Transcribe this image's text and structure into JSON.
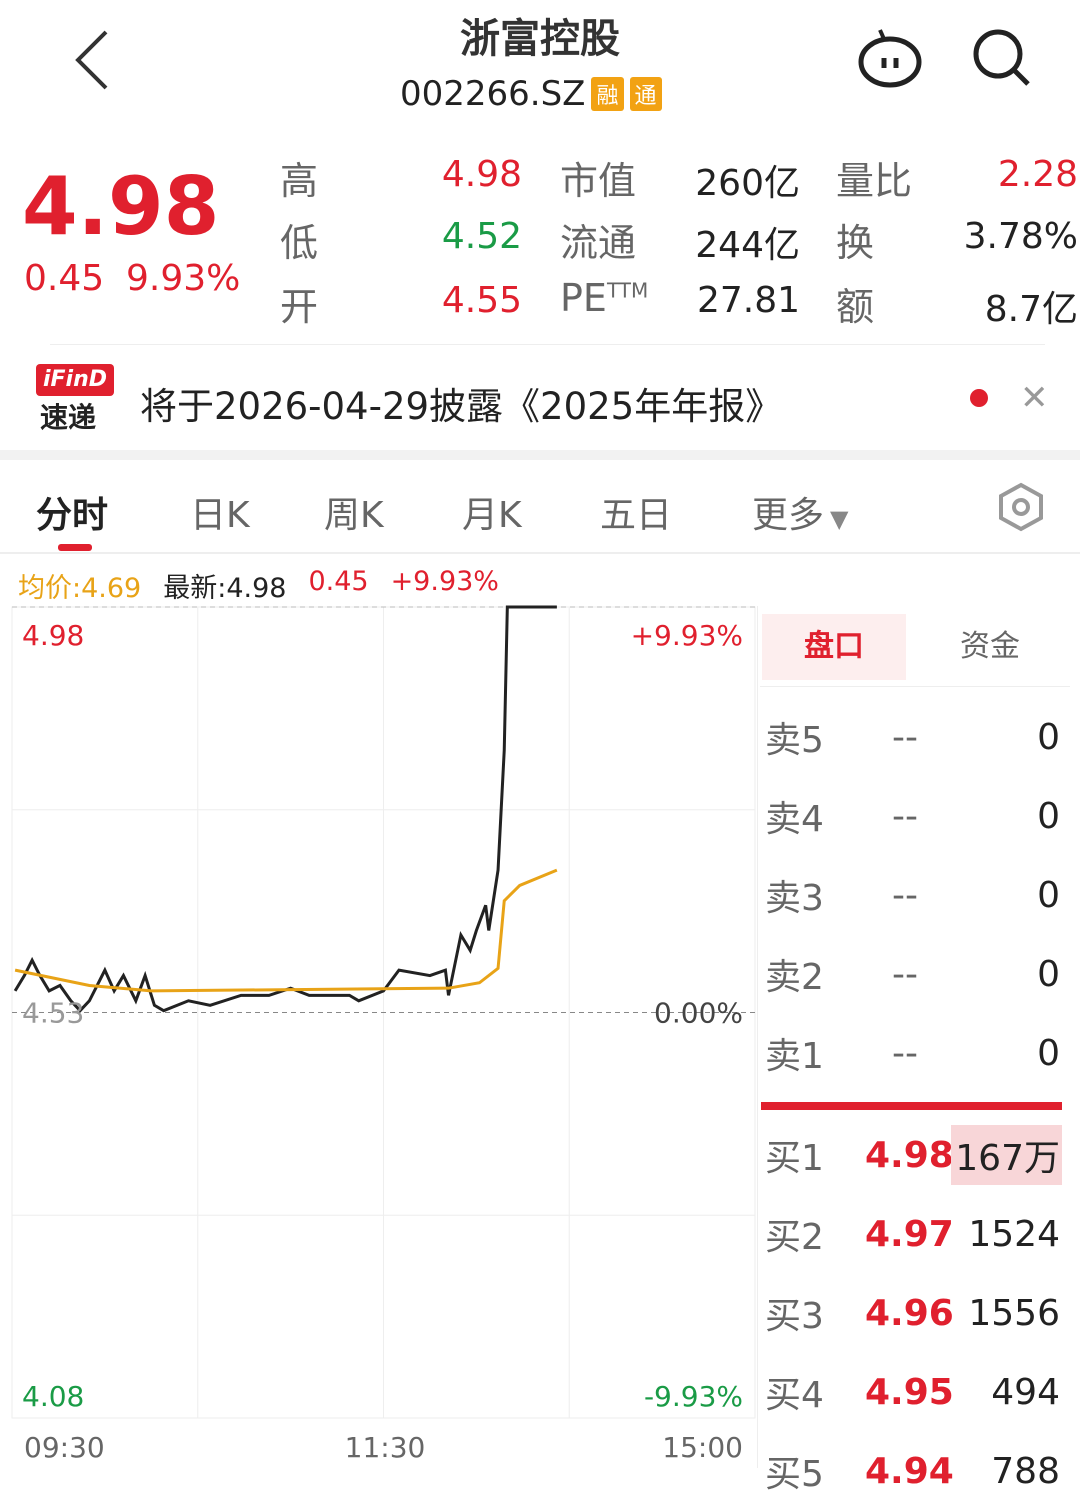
{
  "header": {
    "title": "浙富控股",
    "code": "002266.SZ",
    "tags": [
      "融",
      "通"
    ],
    "icons": [
      "back-chevron-icon",
      "robot-assistant-icon",
      "search-icon"
    ]
  },
  "quote": {
    "price": "4.98",
    "change": "0.45",
    "change_pct": "9.93%",
    "stats": [
      {
        "label": "高",
        "value": "4.98",
        "color": "red"
      },
      {
        "label": "市值",
        "value": "260亿"
      },
      {
        "label": "量比",
        "value": "2.28",
        "color": "red"
      },
      {
        "label": "低",
        "value": "4.52",
        "color": "green"
      },
      {
        "label": "流通",
        "value": "244亿"
      },
      {
        "label": "换",
        "value": "3.78%"
      },
      {
        "label": "开",
        "value": "4.55",
        "color": "red"
      },
      {
        "label": "PE",
        "sup": "TTM",
        "value": "27.81"
      },
      {
        "label": "额",
        "value": "8.7亿"
      }
    ]
  },
  "banner": {
    "logo_top": "iFinD",
    "logo_bottom": "速递",
    "text": "将于2026-04-29披露《2025年年报》"
  },
  "tabs": [
    {
      "label": "分时",
      "active": true
    },
    {
      "label": "日K"
    },
    {
      "label": "周K"
    },
    {
      "label": "月K"
    },
    {
      "label": "五日"
    },
    {
      "label": "更多"
    }
  ],
  "info_bar": {
    "avg": "均价:4.69",
    "latest": "最新:4.98",
    "change": "0.45",
    "pct": "+9.93%"
  },
  "colors": {
    "up": "#e0202e",
    "down": "#1a9b46",
    "avg_line": "#e8a317",
    "price_line": "#222222"
  },
  "chart_data": {
    "type": "line",
    "x_ticks": [
      "09:30",
      "11:30",
      "15:00"
    ],
    "y_left_ticks": [
      "4.98",
      "4.53",
      "4.08"
    ],
    "y_right_ticks": [
      "+9.93%",
      "0.00%",
      "-9.93%"
    ],
    "ylim": [
      4.08,
      4.98
    ],
    "prev_close": 4.53,
    "x_unit": "minutes since 09:30 (trading)",
    "series": [
      {
        "key": "price",
        "points": [
          [
            1,
            4.554
          ],
          [
            4,
            4.571
          ],
          [
            6.5,
            4.588
          ],
          [
            9,
            4.571
          ],
          [
            12,
            4.554
          ],
          [
            15.5,
            4.56
          ],
          [
            19,
            4.543
          ],
          [
            22,
            4.532
          ],
          [
            25,
            4.543
          ],
          [
            30,
            4.577
          ],
          [
            33,
            4.554
          ],
          [
            36,
            4.571
          ],
          [
            40,
            4.543
          ],
          [
            43,
            4.571
          ],
          [
            46,
            4.538
          ],
          [
            49,
            4.532
          ],
          [
            57,
            4.543
          ],
          [
            64,
            4.538
          ],
          [
            74,
            4.549
          ],
          [
            83,
            4.549
          ],
          [
            90,
            4.557
          ],
          [
            96,
            4.549
          ],
          [
            109,
            4.549
          ],
          [
            112,
            4.543
          ],
          [
            120,
            4.554
          ],
          [
            125,
            4.577
          ],
          [
            135,
            4.571
          ],
          [
            140,
            4.577
          ],
          [
            141,
            4.549
          ],
          [
            145,
            4.616
          ],
          [
            148,
            4.599
          ],
          [
            150,
            4.621
          ],
          [
            153,
            4.649
          ],
          [
            154,
            4.621
          ],
          [
            157,
            4.688
          ],
          [
            159,
            4.821
          ],
          [
            160,
            4.98
          ],
          [
            176,
            4.98
          ]
        ]
      },
      {
        "key": "avg",
        "points": [
          [
            1,
            4.577
          ],
          [
            25,
            4.56
          ],
          [
            45,
            4.554
          ],
          [
            141,
            4.557
          ],
          [
            151,
            4.563
          ],
          [
            157,
            4.579
          ],
          [
            159,
            4.654
          ],
          [
            164,
            4.671
          ],
          [
            176,
            4.688
          ]
        ]
      }
    ]
  },
  "orderbook": {
    "tabs": [
      "盘口",
      "资金"
    ],
    "sell": [
      {
        "label": "卖5",
        "price": "--",
        "vol": "0"
      },
      {
        "label": "卖4",
        "price": "--",
        "vol": "0"
      },
      {
        "label": "卖3",
        "price": "--",
        "vol": "0"
      },
      {
        "label": "卖2",
        "price": "--",
        "vol": "0"
      },
      {
        "label": "卖1",
        "price": "--",
        "vol": "0"
      }
    ],
    "buy": [
      {
        "label": "买1",
        "price": "4.98",
        "vol": "167万"
      },
      {
        "label": "买2",
        "price": "4.97",
        "vol": "1524"
      },
      {
        "label": "买3",
        "price": "4.96",
        "vol": "1556"
      },
      {
        "label": "买4",
        "price": "4.95",
        "vol": "494"
      },
      {
        "label": "买5",
        "price": "4.94",
        "vol": "788"
      }
    ]
  }
}
